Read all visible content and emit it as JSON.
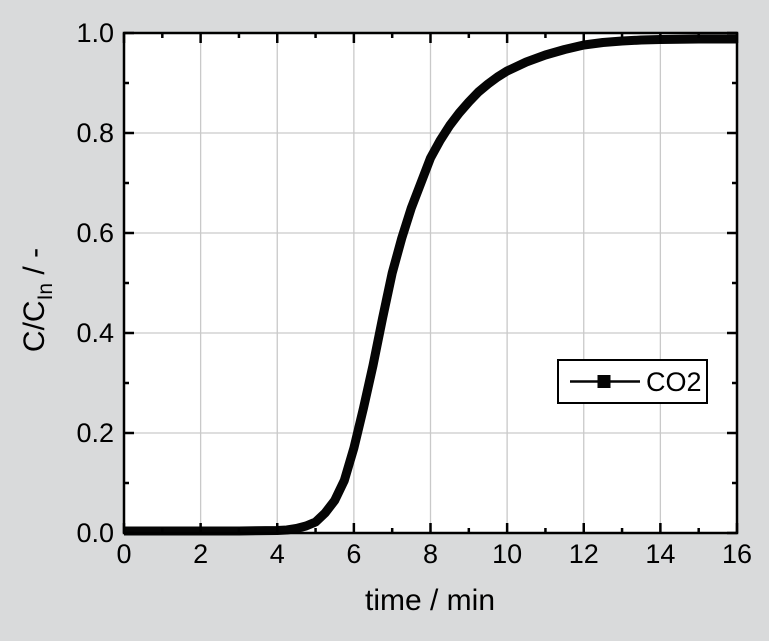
{
  "figure": {
    "background": "#d9dadb",
    "plot_background": "#ffffff",
    "frame_color": "#000000",
    "grid_color": "#c9c9c9",
    "curve_color": "#050505"
  },
  "chart_data": {
    "type": "line",
    "title": "",
    "xlabel": "time / min",
    "ylabel": "C/C_In / -",
    "ylabel_parts": {
      "main": "C/C",
      "sub": "In",
      "suffix": " / -"
    },
    "xlim": [
      0,
      16
    ],
    "ylim": [
      0.0,
      1.0
    ],
    "x_major_ticks": [
      0,
      2,
      4,
      6,
      8,
      10,
      12,
      14,
      16
    ],
    "x_minor_ticks": [
      1,
      3,
      5,
      7,
      9,
      11,
      13,
      15
    ],
    "x_tick_labels": [
      "0",
      "2",
      "4",
      "6",
      "8",
      "10",
      "12",
      "14",
      "16"
    ],
    "y_major_ticks": [
      0.0,
      0.2,
      0.4,
      0.6,
      0.8,
      1.0
    ],
    "y_minor_ticks": [
      0.1,
      0.3,
      0.5,
      0.7,
      0.9
    ],
    "y_tick_labels": [
      "0.0",
      "0.2",
      "0.4",
      "0.6",
      "0.8",
      "1.0"
    ],
    "grid": true,
    "legend": {
      "position": "right-middle",
      "entries": [
        {
          "label": "CO2",
          "marker": "filled-square",
          "line": true
        }
      ]
    },
    "series": [
      {
        "name": "CO2",
        "points": [
          [
            0,
            0.004
          ],
          [
            1,
            0.004
          ],
          [
            2,
            0.004
          ],
          [
            3,
            0.004
          ],
          [
            4,
            0.005
          ],
          [
            4.25,
            0.006
          ],
          [
            4.5,
            0.009
          ],
          [
            4.75,
            0.014
          ],
          [
            5.0,
            0.022
          ],
          [
            5.25,
            0.04
          ],
          [
            5.5,
            0.065
          ],
          [
            5.75,
            0.105
          ],
          [
            6.0,
            0.17
          ],
          [
            6.25,
            0.25
          ],
          [
            6.5,
            0.335
          ],
          [
            6.75,
            0.43
          ],
          [
            7.0,
            0.52
          ],
          [
            7.25,
            0.59
          ],
          [
            7.5,
            0.65
          ],
          [
            7.75,
            0.7
          ],
          [
            8.0,
            0.75
          ],
          [
            8.25,
            0.785
          ],
          [
            8.5,
            0.815
          ],
          [
            8.75,
            0.84
          ],
          [
            9.0,
            0.862
          ],
          [
            9.25,
            0.882
          ],
          [
            9.5,
            0.898
          ],
          [
            9.75,
            0.912
          ],
          [
            10.0,
            0.924
          ],
          [
            10.5,
            0.942
          ],
          [
            11.0,
            0.956
          ],
          [
            11.5,
            0.967
          ],
          [
            12.0,
            0.976
          ],
          [
            12.5,
            0.981
          ],
          [
            13.0,
            0.984
          ],
          [
            13.5,
            0.986
          ],
          [
            14.0,
            0.987
          ],
          [
            15.0,
            0.988
          ],
          [
            16.0,
            0.988
          ]
        ]
      }
    ]
  }
}
